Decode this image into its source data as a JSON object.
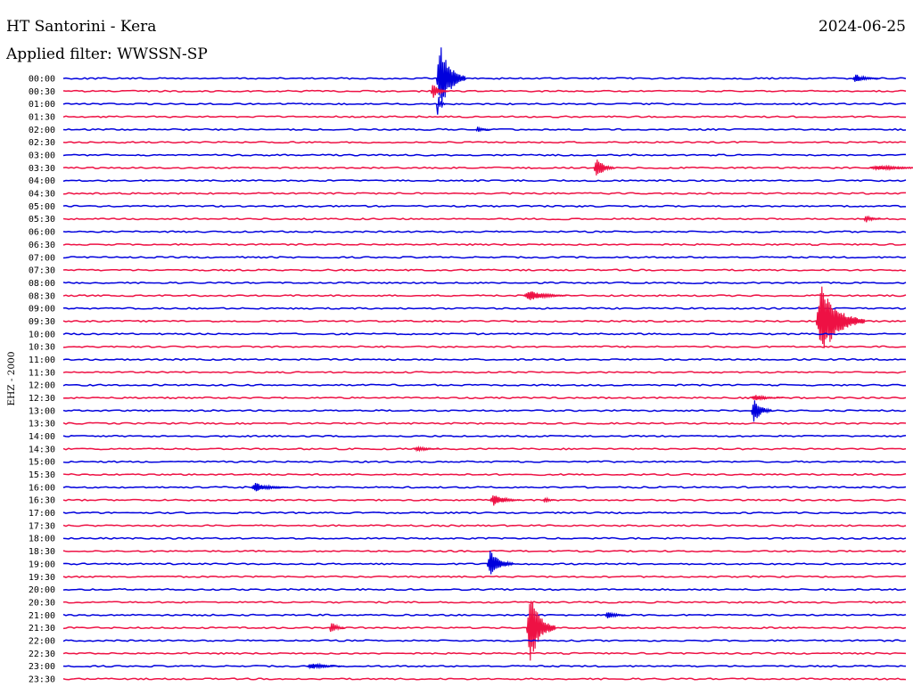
{
  "header": {
    "station": "HT Santorini - Kera",
    "date": "2024-06-25",
    "filter": "Applied filter: WWSSN-SP"
  },
  "chart_data": {
    "type": "line",
    "title": "HT Santorini - Kera",
    "ylabel": "EHZ - 2000",
    "trace_minutes": 30,
    "colors": {
      "even": "#0000dd",
      "odd": "#ee1144"
    },
    "traces": [
      "00:00",
      "00:30",
      "01:00",
      "01:30",
      "02:00",
      "02:30",
      "03:00",
      "03:30",
      "04:00",
      "04:30",
      "05:00",
      "05:30",
      "06:00",
      "06:30",
      "07:00",
      "07:30",
      "08:00",
      "08:30",
      "09:00",
      "09:30",
      "10:00",
      "10:30",
      "11:00",
      "11:30",
      "12:00",
      "12:30",
      "13:00",
      "13:30",
      "14:00",
      "14:30",
      "15:00",
      "15:30",
      "16:00",
      "16:30",
      "17:00",
      "17:30",
      "18:00",
      "18:30",
      "19:00",
      "19:30",
      "20:00",
      "20:30",
      "21:00",
      "21:30",
      "22:00",
      "22:30",
      "23:00",
      "23:30"
    ],
    "events": [
      {
        "trace": 0,
        "minute": 13.4,
        "amplitude": 1.0,
        "duration": 0.9
      },
      {
        "trace": 0,
        "minute": 28.2,
        "amplitude": 0.12,
        "duration": 0.8
      },
      {
        "trace": 1,
        "minute": 13.2,
        "amplitude": 0.2,
        "duration": 0.5
      },
      {
        "trace": 2,
        "minute": 13.4,
        "amplitude": 0.3,
        "duration": 0.2
      },
      {
        "trace": 4,
        "minute": 14.8,
        "amplitude": 0.08,
        "duration": 0.4
      },
      {
        "trace": 7,
        "minute": 19.0,
        "amplitude": 0.32,
        "duration": 0.6
      },
      {
        "trace": 7,
        "minute": 28.8,
        "amplitude": 0.06,
        "duration": 2.4
      },
      {
        "trace": 11,
        "minute": 28.6,
        "amplitude": 0.1,
        "duration": 0.5
      },
      {
        "trace": 17,
        "minute": 16.5,
        "amplitude": 0.15,
        "duration": 1.4
      },
      {
        "trace": 19,
        "minute": 26.9,
        "amplitude": 1.0,
        "duration": 1.6
      },
      {
        "trace": 25,
        "minute": 24.6,
        "amplitude": 0.08,
        "duration": 1.0
      },
      {
        "trace": 26,
        "minute": 24.6,
        "amplitude": 0.35,
        "duration": 0.6
      },
      {
        "trace": 29,
        "minute": 12.6,
        "amplitude": 0.07,
        "duration": 0.8
      },
      {
        "trace": 32,
        "minute": 6.8,
        "amplitude": 0.12,
        "duration": 1.2
      },
      {
        "trace": 33,
        "minute": 15.3,
        "amplitude": 0.15,
        "duration": 1.0
      },
      {
        "trace": 33,
        "minute": 17.2,
        "amplitude": 0.1,
        "duration": 0.3
      },
      {
        "trace": 38,
        "minute": 15.2,
        "amplitude": 0.42,
        "duration": 0.8
      },
      {
        "trace": 42,
        "minute": 19.4,
        "amplitude": 0.12,
        "duration": 0.6
      },
      {
        "trace": 43,
        "minute": 9.6,
        "amplitude": 0.2,
        "duration": 0.4
      },
      {
        "trace": 43,
        "minute": 16.6,
        "amplitude": 1.0,
        "duration": 0.9
      },
      {
        "trace": 46,
        "minute": 8.8,
        "amplitude": 0.08,
        "duration": 1.2
      }
    ]
  }
}
